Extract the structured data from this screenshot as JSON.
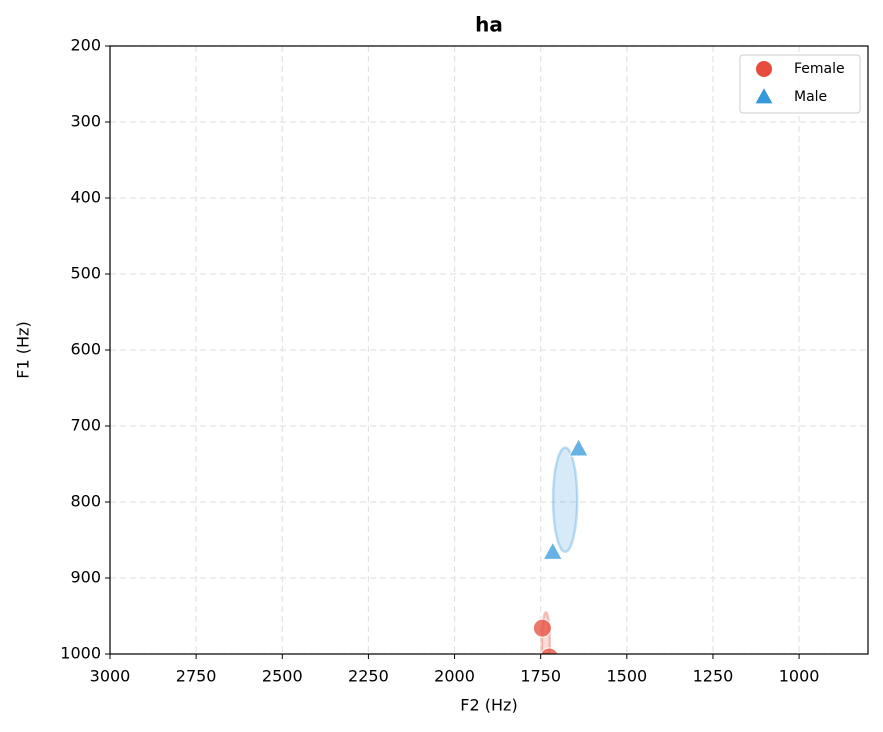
{
  "chart_data": {
    "type": "scatter",
    "title": "ha",
    "x_label": "F2 (Hz)",
    "y_label": "F1 (Hz)",
    "xlim": [
      3000,
      800
    ],
    "ylim": [
      1000,
      200
    ],
    "xticks": [
      3000,
      2750,
      2500,
      2250,
      2000,
      1750,
      1500,
      1250,
      1000
    ],
    "yticks": [
      200,
      300,
      400,
      500,
      600,
      700,
      800,
      900,
      1000
    ],
    "grid": true,
    "legend": "upper right",
    "series": [
      {
        "name": "Female",
        "color": "#e74c3c",
        "marker": "circle",
        "x": [
          1745,
          1725
        ],
        "values": [
          966,
          1004
        ],
        "ellipse": {
          "cx": 1735,
          "cy": 985,
          "width": 23,
          "height": 80
        }
      },
      {
        "name": "Male",
        "color": "#3498db",
        "marker": "triangle",
        "x": [
          1640,
          1715
        ],
        "values": [
          730,
          866
        ],
        "ellipse": {
          "cx": 1679,
          "cy": 797,
          "width": 70,
          "height": 137
        }
      }
    ]
  }
}
